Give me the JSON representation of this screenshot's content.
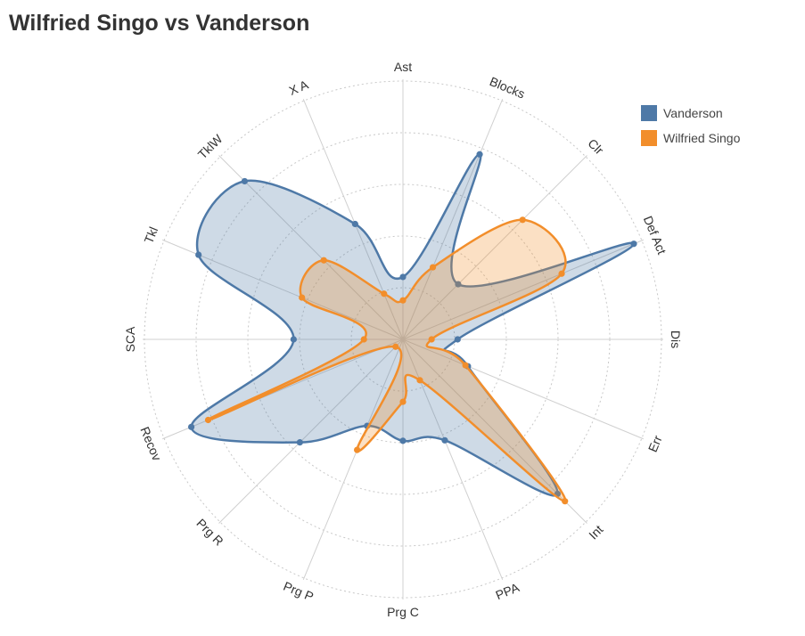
{
  "title": "Wilfried Singo vs Vanderson",
  "colors": {
    "Vanderson": "#4e79a7",
    "Wilfried Singo": "#f28e2b"
  },
  "legend": [
    {
      "name": "Vanderson",
      "color": "#4e79a7"
    },
    {
      "name": "Wilfried Singo",
      "color": "#f28e2b"
    }
  ],
  "chart_data": {
    "type": "radar",
    "title": "Wilfried Singo vs Vanderson",
    "axes": [
      "Ast",
      "Blocks",
      "Clr",
      "Def Act",
      "Dis",
      "Err",
      "Int",
      "PPA",
      "Prg C",
      "Prg P",
      "Prg R",
      "Recov",
      "SCA",
      "Tkl",
      "TklW",
      "X A"
    ],
    "range": [
      0,
      1
    ],
    "grid": true,
    "legend_position": "top-right",
    "series": [
      {
        "name": "Vanderson",
        "values": [
          0.24,
          0.77,
          0.3,
          0.96,
          0.21,
          0.27,
          0.84,
          0.42,
          0.39,
          0.36,
          0.56,
          0.88,
          0.42,
          0.85,
          0.86,
          0.48
        ]
      },
      {
        "name": "Wilfried Singo",
        "values": [
          0.15,
          0.3,
          0.65,
          0.66,
          0.11,
          0.26,
          0.88,
          0.17,
          0.24,
          0.46,
          0.04,
          0.81,
          0.15,
          0.42,
          0.43,
          0.19
        ]
      }
    ]
  }
}
